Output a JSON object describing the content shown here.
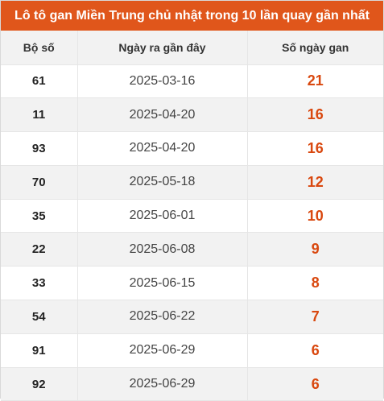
{
  "title": "Lô tô gan Miền Trung chủ nhật trong 10 lần quay gần nhất",
  "colors": {
    "header_bg": "#e0561b",
    "accent_value": "#d9480f",
    "row_stripe": "#f2f2f2"
  },
  "table": {
    "headers": [
      "Bộ số",
      "Ngày ra gần đây",
      "Số ngày gan"
    ],
    "rows": [
      {
        "number": "61",
        "date": "2025-03-16",
        "days": "21"
      },
      {
        "number": "11",
        "date": "2025-04-20",
        "days": "16"
      },
      {
        "number": "93",
        "date": "2025-04-20",
        "days": "16"
      },
      {
        "number": "70",
        "date": "2025-05-18",
        "days": "12"
      },
      {
        "number": "35",
        "date": "2025-06-01",
        "days": "10"
      },
      {
        "number": "22",
        "date": "2025-06-08",
        "days": "9"
      },
      {
        "number": "33",
        "date": "2025-06-15",
        "days": "8"
      },
      {
        "number": "54",
        "date": "2025-06-22",
        "days": "7"
      },
      {
        "number": "91",
        "date": "2025-06-29",
        "days": "6"
      },
      {
        "number": "92",
        "date": "2025-06-29",
        "days": "6"
      }
    ]
  }
}
